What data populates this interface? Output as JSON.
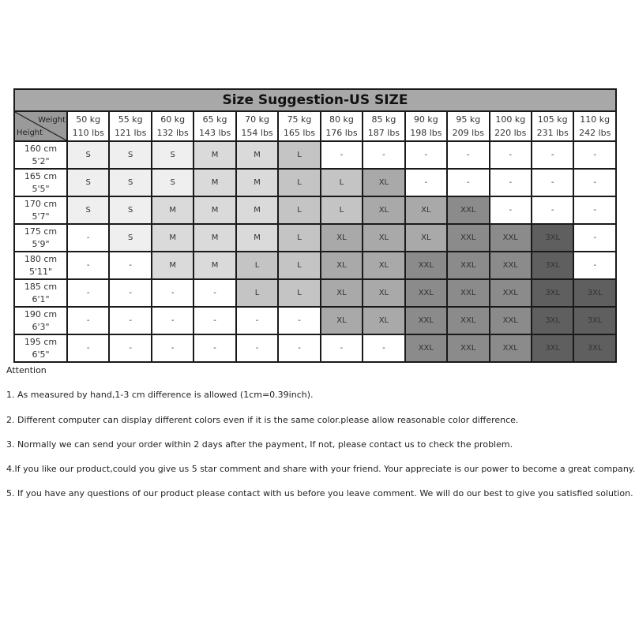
{
  "title": "Size Suggestion-US SIZE",
  "corner": {
    "weight_label": "Weight",
    "height_label": "Height"
  },
  "weights": [
    {
      "kg": "50 kg",
      "lbs": "110 lbs"
    },
    {
      "kg": "55 kg",
      "lbs": "121 lbs"
    },
    {
      "kg": "60 kg",
      "lbs": "132 lbs"
    },
    {
      "kg": "65 kg",
      "lbs": "143 lbs"
    },
    {
      "kg": "70 kg",
      "lbs": "154 lbs"
    },
    {
      "kg": "75 kg",
      "lbs": "165 lbs"
    },
    {
      "kg": "80 kg",
      "lbs": "176 lbs"
    },
    {
      "kg": "85 kg",
      "lbs": "187 lbs"
    },
    {
      "kg": "90 kg",
      "lbs": "198 lbs"
    },
    {
      "kg": "95 kg",
      "lbs": "209 lbs"
    },
    {
      "kg": "100 kg",
      "lbs": "220 lbs"
    },
    {
      "kg": "105 kg",
      "lbs": "231 lbs"
    },
    {
      "kg": "110 kg",
      "lbs": "242 lbs"
    }
  ],
  "rows": [
    {
      "cm": "160 cm",
      "ft": "5'2\"",
      "sizes": [
        "S",
        "S",
        "S",
        "M",
        "M",
        "L",
        "-",
        "-",
        "-",
        "-",
        "-",
        "-",
        "-"
      ]
    },
    {
      "cm": "165 cm",
      "ft": "5'5\"",
      "sizes": [
        "S",
        "S",
        "S",
        "M",
        "M",
        "L",
        "L",
        "XL",
        "-",
        "-",
        "-",
        "-",
        "-"
      ]
    },
    {
      "cm": "170 cm",
      "ft": "5'7\"",
      "sizes": [
        "S",
        "S",
        "M",
        "M",
        "M",
        "L",
        "L",
        "XL",
        "XL",
        "XXL",
        "-",
        "-",
        "-"
      ]
    },
    {
      "cm": "175 cm",
      "ft": "5'9\"",
      "sizes": [
        "-",
        "S",
        "M",
        "M",
        "M",
        "L",
        "XL",
        "XL",
        "XL",
        "XXL",
        "XXL",
        "3XL",
        "-"
      ]
    },
    {
      "cm": "180 cm",
      "ft": "5'11\"",
      "sizes": [
        "-",
        "-",
        "M",
        "M",
        "L",
        "L",
        "XL",
        "XL",
        "XXL",
        "XXL",
        "XXL",
        "3XL",
        "-"
      ]
    },
    {
      "cm": "185 cm",
      "ft": "6'1\"",
      "sizes": [
        "-",
        "-",
        "-",
        "-",
        "L",
        "L",
        "XL",
        "XL",
        "XXL",
        "XXL",
        "XXL",
        "3XL",
        "3XL"
      ]
    },
    {
      "cm": "190 cm",
      "ft": "6'3\"",
      "sizes": [
        "-",
        "-",
        "-",
        "-",
        "-",
        "-",
        "XL",
        "XL",
        "XXL",
        "XXL",
        "XXL",
        "3XL",
        "3XL"
      ]
    },
    {
      "cm": "195 cm",
      "ft": "6'5\"",
      "sizes": [
        "-",
        "-",
        "-",
        "-",
        "-",
        "-",
        "-",
        "-",
        "XXL",
        "XXL",
        "XXL",
        "3XL",
        "3XL"
      ]
    }
  ],
  "size_colors": {
    "S": "#efefef",
    "M": "#dadada",
    "L": "#c4c4c4",
    "XL": "#a9a9a9",
    "XXL": "#8b8b8b",
    "3XL": "#5f5f5f",
    "-": "#ffffff"
  },
  "notes": {
    "heading": "Attention",
    "items": [
      "1. As measured by hand,1-3 cm difference is allowed (1cm=0.39inch).",
      "2. Different computer can display different colors even if it is the same color.please allow reasonable color difference.",
      "3. Normally we can send your order within 2 days after the payment, If not, please contact us to check the problem.",
      "4.If you like our product,could you give us 5 star comment and share with your friend. Your appreciate is our power to become a great company.",
      "5. If you have any questions of our product please contact with us before you leave comment. We will do our best to give you satisfied solution."
    ]
  }
}
